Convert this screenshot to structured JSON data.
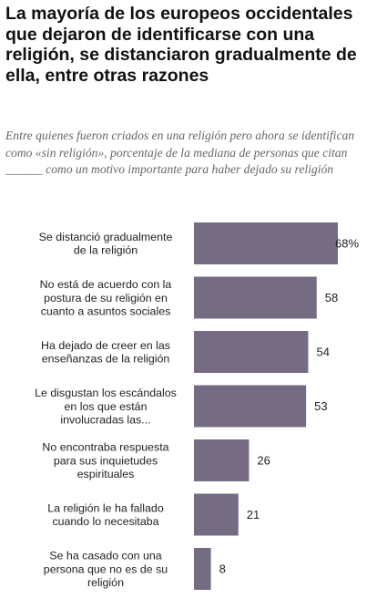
{
  "title": "La mayoría de los europeos occidentales que dejaron de identificarse con una religión, se distanciaron gradualmente de ella, entre otras razones",
  "subtitle": "Entre quienes fueron criados en una religión pero ahora se identifican como «sin religión», porcentaje de la mediana de personas que citan ______ como un motivo importante para haber dejado su religión",
  "colors": {
    "bar": "#756c84"
  },
  "chart_data": {
    "type": "bar",
    "orientation": "horizontal",
    "categories": [
      [
        "Se distanció gradualmente",
        "de la religión"
      ],
      [
        "No está de acuerdo con la",
        "postura de su religión en",
        "cuanto a asuntos sociales"
      ],
      [
        "Ha dejado de creer en las",
        "enseñanzas de la religión"
      ],
      [
        "Le disgustan los escándalos",
        "en los que están",
        "involucradas las..."
      ],
      [
        "No encontraba respuesta",
        "para sus inquietudes",
        "espirituales"
      ],
      [
        "La religión le ha fallado",
        "cuando lo necesitaba"
      ],
      [
        "Se ha casado con una",
        "persona que no es de su",
        "religión"
      ]
    ],
    "values": [
      68,
      58,
      54,
      53,
      26,
      21,
      8
    ],
    "value_labels": [
      "68%",
      "58",
      "54",
      "53",
      "26",
      "21",
      "8"
    ],
    "xlim": [
      0,
      70
    ]
  }
}
